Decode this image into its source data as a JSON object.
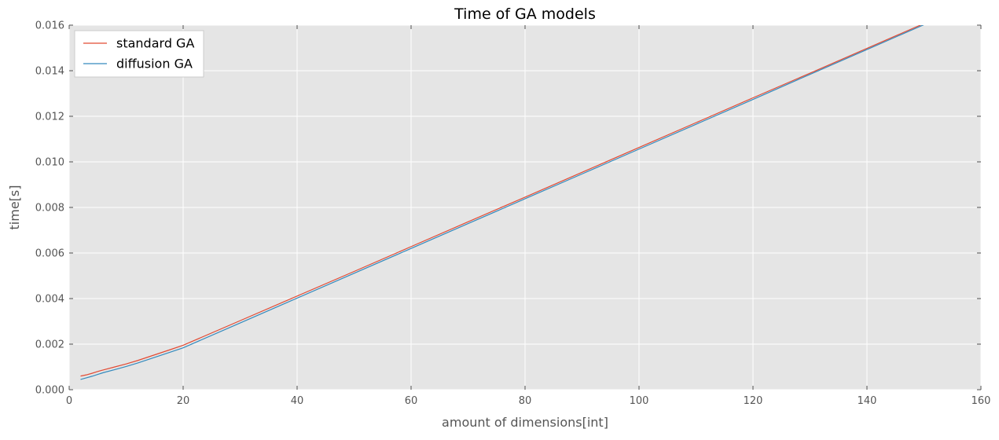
{
  "chart_data": {
    "type": "line",
    "title": "Time of GA models",
    "xlabel": "amount of dimensions[int]",
    "ylabel": "time[s]",
    "xlim": [
      0,
      160
    ],
    "ylim": [
      0,
      0.016
    ],
    "x_ticks": [
      0,
      20,
      40,
      60,
      80,
      100,
      120,
      140,
      160
    ],
    "x_tick_labels": [
      "0",
      "20",
      "40",
      "60",
      "80",
      "100",
      "120",
      "140",
      "160"
    ],
    "y_ticks": [
      0,
      0.002,
      0.004,
      0.006,
      0.008,
      0.01,
      0.012,
      0.014,
      0.016
    ],
    "y_tick_labels": [
      "0.000",
      "0.002",
      "0.004",
      "0.006",
      "0.008",
      "0.010",
      "0.012",
      "0.014",
      "0.016"
    ],
    "grid": true,
    "legend_position": "top-left",
    "background": "#e5e5e5",
    "series": [
      {
        "name": "standard GA",
        "color": "#e24a33",
        "x": [
          2,
          3,
          4,
          5,
          6,
          8,
          10,
          12,
          15,
          18,
          20,
          30,
          40,
          50,
          60,
          70,
          80,
          90,
          100,
          110,
          120,
          130,
          140,
          150,
          160
        ],
        "y": [
          0.0006,
          0.00065,
          0.00072,
          0.0008,
          0.00087,
          0.001,
          0.00113,
          0.00128,
          0.00153,
          0.00178,
          0.00195,
          0.00303,
          0.00411,
          0.00519,
          0.00628,
          0.00737,
          0.00845,
          0.00954,
          0.01063,
          0.01172,
          0.01281,
          0.01389,
          0.01498,
          0.01607,
          0.01716
        ]
      },
      {
        "name": "diffusion GA",
        "color": "#348abd",
        "x": [
          2,
          3,
          4,
          5,
          6,
          8,
          10,
          12,
          15,
          18,
          20,
          30,
          40,
          50,
          60,
          70,
          80,
          90,
          100,
          110,
          120,
          130,
          140,
          150,
          160
        ],
        "y": [
          0.00045,
          0.00052,
          0.00059,
          0.00067,
          0.00075,
          0.00088,
          0.00102,
          0.00117,
          0.00142,
          0.00167,
          0.00184,
          0.00293,
          0.00402,
          0.00511,
          0.0062,
          0.00729,
          0.00838,
          0.00947,
          0.01056,
          0.01165,
          0.01274,
          0.01384,
          0.01493,
          0.01602,
          0.01711
        ]
      }
    ]
  }
}
